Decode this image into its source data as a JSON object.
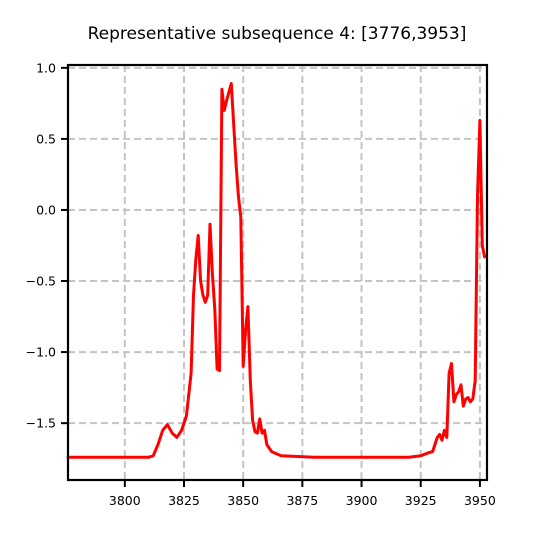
{
  "chart_data": {
    "type": "line",
    "title": "Representative subsequence 4: [3776,3953]",
    "xlabel": "",
    "ylabel": "",
    "xlim": [
      3776,
      3953
    ],
    "ylim": [
      -1.9,
      1.02
    ],
    "xticks": [
      3800,
      3825,
      3850,
      3875,
      3900,
      3925,
      3950
    ],
    "yticks": [
      1.0,
      0.5,
      0.0,
      -0.5,
      -1.0,
      -1.5
    ],
    "ytick_labels": [
      "1.0",
      "0.5",
      "0.0",
      "−0.5",
      "−1.0",
      "−1.5"
    ],
    "grid": true,
    "series": [
      {
        "color": "#ff0000",
        "x": [
          3776,
          3790,
          3800,
          3810,
          3812,
          3814,
          3816,
          3818,
          3820,
          3822,
          3824,
          3826,
          3828,
          3829,
          3830,
          3831,
          3832,
          3833,
          3834,
          3835,
          3836,
          3837,
          3838,
          3839,
          3840,
          3841,
          3842,
          3843,
          3844,
          3845,
          3846,
          3847,
          3848,
          3849,
          3850,
          3851,
          3852,
          3853,
          3854,
          3855,
          3856,
          3857,
          3858,
          3859,
          3860,
          3862,
          3866,
          3880,
          3900,
          3920,
          3925,
          3928,
          3930,
          3932,
          3933,
          3934,
          3935,
          3936,
          3937,
          3938,
          3939,
          3940,
          3941,
          3942,
          3943,
          3944,
          3945,
          3946,
          3947,
          3948,
          3949,
          3950,
          3951,
          3952
        ],
        "y": [
          -1.74,
          -1.74,
          -1.74,
          -1.74,
          -1.73,
          -1.65,
          -1.55,
          -1.51,
          -1.57,
          -1.6,
          -1.55,
          -1.45,
          -1.15,
          -0.6,
          -0.35,
          -0.18,
          -0.5,
          -0.6,
          -0.65,
          -0.6,
          -0.1,
          -0.45,
          -0.7,
          -1.12,
          -1.13,
          0.85,
          0.7,
          0.77,
          0.83,
          0.89,
          0.6,
          0.32,
          0.1,
          -0.05,
          -1.1,
          -0.85,
          -0.68,
          -1.2,
          -1.48,
          -1.56,
          -1.57,
          -1.47,
          -1.57,
          -1.55,
          -1.65,
          -1.7,
          -1.73,
          -1.74,
          -1.74,
          -1.74,
          -1.73,
          -1.71,
          -1.7,
          -1.6,
          -1.58,
          -1.62,
          -1.55,
          -1.6,
          -1.15,
          -1.08,
          -1.35,
          -1.3,
          -1.28,
          -1.23,
          -1.38,
          -1.33,
          -1.32,
          -1.35,
          -1.33,
          -1.2,
          0.1,
          0.63,
          -0.25,
          -0.33
        ]
      }
    ]
  }
}
